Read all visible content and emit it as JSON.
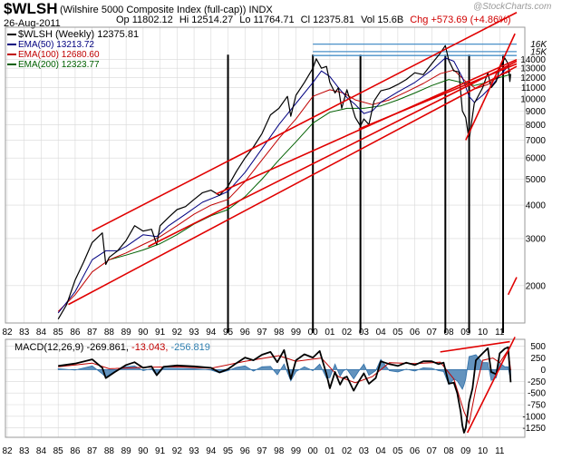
{
  "header": {
    "symbol": "$WLSH",
    "description": "(Wilshire 5000 Composite Index (full-cap))",
    "exchange": "INDX",
    "date": "26-Aug-2011",
    "watermark": "@StockCharts.com",
    "quote": {
      "open": "Op 11802.12",
      "high": "Hi 12514.27",
      "low": "Lo 11764.71",
      "close": "Cl 12375.81",
      "volume": "Vol 15.6B",
      "change": "Chg +573.69 (+4.86%)"
    }
  },
  "legend": {
    "price": "$WLSH (Weekly) 12375.81",
    "ema50": "EMA(50) 13213.72",
    "ema100": "EMA(100) 12680.60",
    "ema200": "EMA(200) 12323.77"
  },
  "macd_legend": {
    "label": "MACD(12,26,9)",
    "macd": "-269.861,",
    "signal": "-13.043,",
    "hist": "-256.819"
  },
  "colors": {
    "price": "#000000",
    "ema50": "#000080",
    "ema100": "#c00000",
    "ema200": "#006000",
    "trendline": "#e00000",
    "resistance": "#4a90c8",
    "macd_hist": "#2f6fa8",
    "grid": "#d8d8d8"
  },
  "chart_data": [
    {
      "type": "line",
      "title": "$WLSH (Wilshire 5000 Composite Index (full-cap)) Weekly",
      "scale": "log",
      "x_domain": [
        1982,
        2012
      ],
      "x_ticks": [
        "82",
        "83",
        "84",
        "85",
        "86",
        "87",
        "88",
        "89",
        "90",
        "91",
        "92",
        "93",
        "94",
        "95",
        "96",
        "97",
        "98",
        "99",
        "00",
        "01",
        "02",
        "03",
        "04",
        "05",
        "06",
        "07",
        "08",
        "09",
        "10",
        "11"
      ],
      "ylim": [
        1450,
        18500
      ],
      "y_ticks": [
        14000,
        13000,
        12000,
        11000,
        10000,
        9000,
        8000,
        7000,
        6000,
        5000,
        4000,
        3000,
        2000
      ],
      "y_tick_labels": [
        "14000",
        "13000",
        "12000",
        "11000",
        "10000",
        "9000",
        "8000",
        "7000",
        "6000",
        "5000",
        "4000",
        "3000",
        "2000"
      ],
      "resistance_labels": [
        "16K",
        "15K"
      ],
      "series": [
        {
          "name": "$WLSH (Weekly)",
          "x": [
            1985.0,
            1985.5,
            1986.0,
            1986.5,
            1987.0,
            1987.6,
            1987.8,
            1988.0,
            1988.5,
            1989.0,
            1989.5,
            1990.0,
            1990.5,
            1990.8,
            1991.0,
            1991.5,
            1992.0,
            1992.5,
            1993.0,
            1993.5,
            1994.0,
            1994.5,
            1995.0,
            1995.5,
            1996.0,
            1996.5,
            1997.0,
            1997.5,
            1998.0,
            1998.5,
            1998.7,
            1999.0,
            1999.5,
            2000.0,
            2000.2,
            2000.5,
            2000.8,
            2001.0,
            2001.3,
            2001.5,
            2001.7,
            2002.0,
            2002.5,
            2002.8,
            2003.0,
            2003.3,
            2003.6,
            2004.0,
            2004.5,
            2005.0,
            2005.5,
            2006.0,
            2006.5,
            2007.0,
            2007.5,
            2007.8,
            2008.0,
            2008.3,
            2008.6,
            2008.8,
            2009.0,
            2009.2,
            2009.5,
            2010.0,
            2010.3,
            2010.5,
            2010.8,
            2011.0,
            2011.3,
            2011.5,
            2011.6,
            2011.65
          ],
          "values": [
            1500,
            1700,
            2100,
            2450,
            2900,
            3150,
            2400,
            2550,
            2700,
            2950,
            3350,
            3200,
            3250,
            2850,
            3350,
            3600,
            3850,
            3950,
            4200,
            4450,
            4550,
            4350,
            4700,
            5350,
            6000,
            6600,
            7400,
            8700,
            9200,
            10200,
            8600,
            10300,
            11500,
            13000,
            14100,
            13000,
            13200,
            11500,
            10500,
            11000,
            9200,
            10800,
            8500,
            7900,
            8400,
            8000,
            9800,
            10700,
            10900,
            11300,
            11800,
            12500,
            12300,
            13500,
            14800,
            15800,
            13900,
            12700,
            12600,
            9000,
            8500,
            7000,
            9600,
            11000,
            12500,
            11000,
            11600,
            13000,
            14200,
            13500,
            11600,
            12375.81
          ]
        },
        {
          "name": "EMA(50)",
          "x": [
            1985.0,
            1986.0,
            1987.0,
            1987.8,
            1988.5,
            1989.0,
            1990.0,
            1990.8,
            1991.5,
            1992.5,
            1993.5,
            1994.5,
            1995.0,
            1996.0,
            1997.0,
            1998.0,
            1999.0,
            2000.0,
            2000.5,
            2001.0,
            2001.5,
            2002.0,
            2002.5,
            2003.0,
            2003.5,
            2004.0,
            2005.0,
            2006.0,
            2007.0,
            2007.8,
            2008.3,
            2008.8,
            2009.2,
            2009.5,
            2010.0,
            2010.5,
            2011.0,
            2011.5,
            2011.65
          ],
          "values": [
            1580,
            1900,
            2500,
            2700,
            2700,
            2800,
            3100,
            3050,
            3350,
            3700,
            4100,
            4350,
            4500,
            5300,
            6500,
            8000,
            9600,
            11500,
            12700,
            12100,
            11000,
            10100,
            9500,
            8800,
            9000,
            9700,
            10600,
            11500,
            12800,
            14200,
            13800,
            12000,
            10200,
            9700,
            10300,
            11100,
            12200,
            13200,
            13213.72
          ]
        },
        {
          "name": "EMA(100)",
          "x": [
            1985.0,
            1986.0,
            1987.0,
            1988.0,
            1989.0,
            1990.0,
            1991.0,
            1992.0,
            1993.0,
            1994.0,
            1995.0,
            1996.0,
            1997.0,
            1998.0,
            1999.0,
            2000.0,
            2001.0,
            2001.8,
            2002.5,
            2003.5,
            2004.5,
            2005.5,
            2006.5,
            2007.5,
            2008.3,
            2009.0,
            2009.6,
            2010.3,
            2011.0,
            2011.65
          ],
          "values": [
            1600,
            1850,
            2250,
            2500,
            2650,
            2850,
            3050,
            3350,
            3700,
            4000,
            4200,
            4900,
            5900,
            7100,
            8400,
            10200,
            10800,
            10500,
            9900,
            9500,
            9900,
            10600,
            11400,
            12400,
            12800,
            11600,
            10900,
            11300,
            12200,
            12680.6
          ]
        },
        {
          "name": "EMA(200)",
          "x": [
            1988.0,
            1989.0,
            1990.0,
            1991.0,
            1992.0,
            1993.0,
            1994.0,
            1995.0,
            1996.0,
            1997.0,
            1998.0,
            1999.0,
            2000.0,
            2001.0,
            2002.0,
            2003.0,
            2004.0,
            2005.0,
            2006.0,
            2007.0,
            2008.0,
            2009.0,
            2009.5,
            2010.0,
            2011.0,
            2011.65
          ],
          "values": [
            2500,
            2600,
            2720,
            2870,
            3100,
            3400,
            3650,
            3850,
            4300,
            5000,
            5900,
            6900,
            8100,
            8900,
            9200,
            9200,
            9400,
            9900,
            10500,
            11200,
            11800,
            11400,
            11200,
            11400,
            12000,
            12323.77
          ]
        }
      ],
      "trendlines": [
        {
          "name": "upper channel (1987 high)",
          "x": [
            1987.0,
            2012.0
          ],
          "values": [
            3200,
            21000
          ]
        },
        {
          "name": "lower channel (1985 low)",
          "x": [
            1985.6,
            2012.0
          ],
          "values": [
            1700,
            13200
          ]
        },
        {
          "name": "1995 support",
          "x": [
            1994.3,
            2012.0
          ],
          "values": [
            4400,
            14000
          ]
        },
        {
          "name": "1990 support",
          "x": [
            1990.3,
            2012.0
          ],
          "values": [
            2800,
            13800
          ]
        },
        {
          "name": "2009 rally line",
          "x": [
            2009.0,
            2011.9
          ],
          "values": [
            7000,
            17500
          ]
        },
        {
          "name": "2002-2009 lower",
          "x": [
            2002.7,
            2012.0
          ],
          "values": [
            7700,
            13500
          ]
        },
        {
          "name": "steep 2011",
          "x": [
            2011.5,
            2012.0
          ],
          "values": [
            1850,
            2150
          ]
        }
      ],
      "resistance_lines": [
        {
          "name": "16K",
          "value": 16000,
          "x": [
            2000.0,
            2012.0
          ]
        },
        {
          "name": "15K",
          "value": 15000,
          "x": [
            2000.0,
            2012.0
          ]
        },
        {
          "name": "2000 top",
          "value": 14500,
          "x": [
            2000.0,
            2012.0
          ]
        }
      ],
      "marker_lines": [
        1995.0,
        2000.0,
        2002.8,
        2007.8,
        2009.2,
        2011.2
      ]
    },
    {
      "type": "line",
      "title": "MACD(12,26,9)",
      "x_domain": [
        1982,
        2012
      ],
      "x_ticks": [
        "82",
        "83",
        "84",
        "85",
        "86",
        "87",
        "88",
        "89",
        "90",
        "91",
        "92",
        "93",
        "94",
        "95",
        "96",
        "97",
        "98",
        "99",
        "00",
        "01",
        "02",
        "03",
        "04",
        "05",
        "06",
        "07",
        "08",
        "09",
        "10",
        "11"
      ],
      "ylim": [
        -1450,
        650
      ],
      "y_ticks": [
        500,
        250,
        0,
        -250,
        -500,
        -750,
        -1000,
        -1250
      ],
      "y_tick_labels": [
        "500",
        "250",
        "0",
        "-250",
        "-500",
        "-750",
        "-1000",
        "-1250"
      ],
      "series": [
        {
          "name": "MACD",
          "x": [
            1985.0,
            1986.0,
            1987.0,
            1987.6,
            1987.8,
            1988.3,
            1989.0,
            1989.5,
            1990.0,
            1990.5,
            1990.8,
            1991.2,
            1992.0,
            1993.0,
            1994.0,
            1994.5,
            1995.0,
            1995.5,
            1996.0,
            1996.5,
            1997.0,
            1997.5,
            1997.9,
            1998.3,
            1998.7,
            1999.0,
            1999.5,
            2000.0,
            2000.4,
            2000.8,
            2001.0,
            2001.3,
            2001.6,
            2001.8,
            2002.0,
            2002.4,
            2002.7,
            2003.0,
            2003.3,
            2003.7,
            2004.0,
            2004.5,
            2005.0,
            2005.5,
            2006.0,
            2006.5,
            2007.0,
            2007.4,
            2007.7,
            2008.0,
            2008.3,
            2008.5,
            2008.7,
            2008.8,
            2008.9,
            2009.0,
            2009.2,
            2009.4,
            2009.6,
            2010.0,
            2010.3,
            2010.5,
            2010.8,
            2011.0,
            2011.3,
            2011.5,
            2011.65
          ],
          "values": [
            80,
            130,
            220,
            40,
            -180,
            -60,
            100,
            160,
            40,
            70,
            -120,
            60,
            90,
            70,
            40,
            -60,
            10,
            140,
            260,
            200,
            320,
            380,
            160,
            420,
            -200,
            200,
            330,
            260,
            400,
            -100,
            -400,
            -50,
            -320,
            -180,
            -150,
            -450,
            -250,
            -80,
            -300,
            -180,
            180,
            120,
            80,
            150,
            100,
            180,
            180,
            120,
            150,
            -300,
            -280,
            -500,
            -900,
            -1200,
            -1350,
            -1250,
            -700,
            -400,
            200,
            350,
            460,
            -50,
            -100,
            350,
            450,
            480,
            -269.861
          ]
        },
        {
          "name": "Signal",
          "x": [
            1985.0,
            1987.0,
            1988.0,
            1990.0,
            1992.0,
            1994.0,
            1996.0,
            1998.0,
            1999.0,
            2000.5,
            2001.5,
            2002.5,
            2003.5,
            2004.5,
            2006.0,
            2007.5,
            2008.3,
            2008.9,
            2009.2,
            2009.6,
            2010.0,
            2010.6,
            2011.0,
            2011.5,
            2011.65
          ],
          "values": [
            60,
            140,
            20,
            50,
            60,
            30,
            180,
            300,
            180,
            250,
            -150,
            -280,
            -150,
            150,
            130,
            160,
            -200,
            -900,
            -1150,
            -400,
            200,
            250,
            150,
            420,
            -13.043
          ]
        }
      ],
      "histogram": {
        "name": "Histogram",
        "x": [
          1985.0,
          1986.0,
          1987.0,
          1987.6,
          1987.8,
          1988.3,
          1989.0,
          1989.5,
          1990.0,
          1990.5,
          1990.8,
          1991.2,
          1992.0,
          1993.0,
          1994.0,
          1994.5,
          1995.0,
          1995.5,
          1996.0,
          1996.5,
          1997.0,
          1997.5,
          1997.9,
          1998.3,
          1998.7,
          1999.0,
          1999.5,
          2000.0,
          2000.4,
          2000.8,
          2001.0,
          2001.3,
          2001.6,
          2001.8,
          2002.0,
          2002.4,
          2002.7,
          2003.0,
          2003.3,
          2003.7,
          2004.0,
          2004.5,
          2005.0,
          2005.5,
          2006.0,
          2006.5,
          2007.0,
          2007.4,
          2007.7,
          2008.0,
          2008.3,
          2008.5,
          2008.7,
          2008.8,
          2008.9,
          2009.0,
          2009.2,
          2009.4,
          2009.6,
          2010.0,
          2010.3,
          2010.5,
          2010.8,
          2011.0,
          2011.3,
          2011.5,
          2011.65
        ],
        "values": [
          20,
          -10,
          80,
          -90,
          -160,
          -40,
          60,
          80,
          -20,
          20,
          -130,
          30,
          30,
          20,
          -10,
          -70,
          -20,
          50,
          80,
          -30,
          60,
          70,
          -110,
          120,
          -240,
          -40,
          60,
          -20,
          120,
          -180,
          -170,
          120,
          -140,
          -20,
          10,
          -200,
          -30,
          120,
          -120,
          -20,
          220,
          -20,
          -50,
          10,
          -30,
          40,
          30,
          -20,
          -40,
          -320,
          -200,
          -240,
          -360,
          -420,
          -330,
          -200,
          280,
          300,
          320,
          150,
          150,
          -230,
          -170,
          150,
          60,
          60,
          -256.819
        ]
      },
      "trendlines": [
        {
          "name": "MACD upper",
          "x": [
            2007.5,
            2011.6
          ],
          "values": [
            380,
            600
          ]
        },
        {
          "name": "MACD rising",
          "x": [
            2009.1,
            2011.9
          ],
          "values": [
            -1350,
            700
          ]
        }
      ]
    }
  ]
}
